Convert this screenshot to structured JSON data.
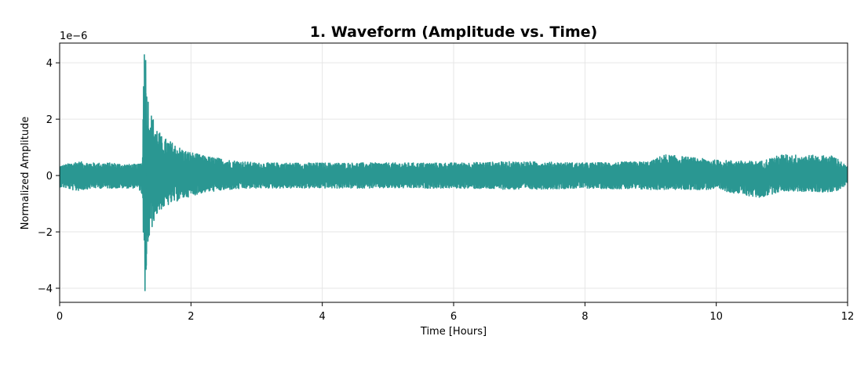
{
  "chart_data": {
    "type": "line",
    "title": "1. Waveform (Amplitude vs. Time)",
    "xlabel": "Time [Hours]",
    "ylabel": "Normalized Amplitude",
    "y_offset_text": "1e−6",
    "xlim": [
      0,
      12
    ],
    "ylim": [
      -4.5,
      4.7
    ],
    "x_ticks": [
      0,
      2,
      4,
      6,
      8,
      10,
      12
    ],
    "x_tick_labels": [
      "0",
      "2",
      "4",
      "6",
      "8",
      "10",
      "12"
    ],
    "y_ticks": [
      -4,
      -2,
      0,
      2,
      4
    ],
    "y_tick_labels": [
      "−4",
      "−2",
      "0",
      "2",
      "4"
    ],
    "grid": true,
    "line_color": "#2a9792",
    "series": [
      {
        "envelope": {
          "x": [
            0,
            0.1,
            0.25,
            0.5,
            0.8,
            1.0,
            1.2,
            1.26,
            1.28,
            1.3,
            1.33,
            1.38,
            1.45,
            1.55,
            1.7,
            1.9,
            2.2,
            2.6,
            3.0,
            4.0,
            5.0,
            6.0,
            7.0,
            8.0,
            9.0,
            9.2,
            10.0,
            10.66,
            11.0,
            11.8,
            12.0
          ],
          "upper": [
            0.35,
            0.4,
            0.5,
            0.45,
            0.45,
            0.4,
            0.4,
            0.5,
            4.1,
            4.3,
            3.1,
            2.3,
            1.9,
            1.4,
            1.2,
            0.9,
            0.7,
            0.55,
            0.45,
            0.45,
            0.45,
            0.45,
            0.5,
            0.45,
            0.5,
            0.75,
            0.55,
            0.5,
            0.75,
            0.7,
            0.3
          ],
          "lower": [
            -0.4,
            -0.45,
            -0.55,
            -0.45,
            -0.45,
            -0.45,
            -0.45,
            -0.7,
            -3.2,
            -4.1,
            -2.9,
            -2.1,
            -1.5,
            -1.2,
            -1.0,
            -0.8,
            -0.6,
            -0.5,
            -0.45,
            -0.45,
            -0.45,
            -0.45,
            -0.5,
            -0.45,
            -0.5,
            -0.5,
            -0.5,
            -0.8,
            -0.55,
            -0.6,
            -0.3
          ]
        }
      }
    ]
  }
}
